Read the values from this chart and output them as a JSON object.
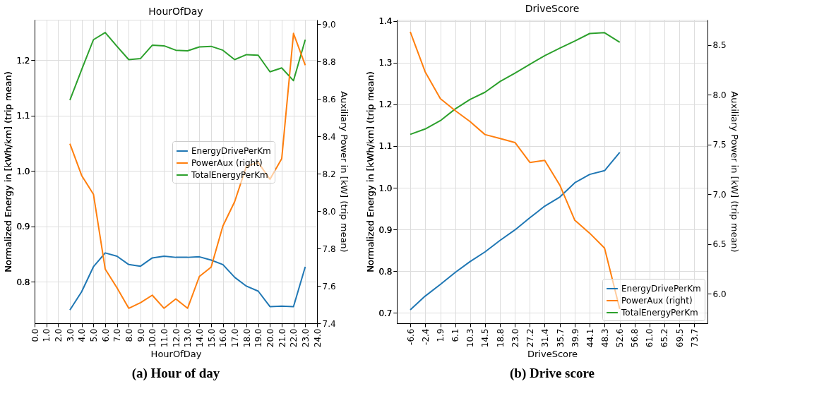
{
  "chart_data": [
    {
      "type": "line",
      "title": "HourOfDay",
      "xlabel": "HourOfDay",
      "ylabel": "Normalized Energy in [kWh/km] (trip mean)",
      "y2label": "Auxiliary Power in [kW] (trip mean)",
      "annotations": [
        "(a) Hour of day"
      ],
      "grid": true,
      "legend": "right",
      "xlim": [
        0,
        24
      ],
      "xticks": [
        {
          "value": 0,
          "label": "0.0"
        },
        {
          "value": 1,
          "label": "1.0"
        },
        {
          "value": 2,
          "label": "2.0"
        },
        {
          "value": 3,
          "label": "3.0"
        },
        {
          "value": 4,
          "label": "4.0"
        },
        {
          "value": 5,
          "label": "5.0"
        },
        {
          "value": 6,
          "label": "6.0"
        },
        {
          "value": 7,
          "label": "7.0"
        },
        {
          "value": 8,
          "label": "8.0"
        },
        {
          "value": 9,
          "label": "9.0"
        },
        {
          "value": 10,
          "label": "10.0"
        },
        {
          "value": 11,
          "label": "11.0"
        },
        {
          "value": 12,
          "label": "12.0"
        },
        {
          "value": 13,
          "label": "13.0"
        },
        {
          "value": 14,
          "label": "14.0"
        },
        {
          "value": 15,
          "label": "15.0"
        },
        {
          "value": 16,
          "label": "16.0"
        },
        {
          "value": 17,
          "label": "17.0"
        },
        {
          "value": 18,
          "label": "18.0"
        },
        {
          "value": 19,
          "label": "19.0"
        },
        {
          "value": 20,
          "label": "20.0"
        },
        {
          "value": 21,
          "label": "21.0"
        },
        {
          "value": 22,
          "label": "22.0"
        },
        {
          "value": 23,
          "label": "23.0"
        },
        {
          "value": 24,
          "label": "24.0"
        }
      ],
      "ylim": [
        0.725,
        1.273
      ],
      "yticks": [
        0.8,
        0.9,
        {
          "value": 1.0,
          "label": "1.0"
        },
        1.1,
        1.2
      ],
      "y2lim": [
        7.4,
        9.023
      ],
      "y2ticks": [
        7.4,
        7.6,
        7.8,
        {
          "value": 8.0,
          "label": "8.0"
        },
        8.2,
        8.4,
        8.6,
        8.8,
        {
          "value": 9.0,
          "label": "9.0"
        }
      ],
      "x": [
        3,
        4,
        5,
        6,
        7,
        8,
        9,
        10,
        11,
        12,
        13,
        14,
        15,
        16,
        17,
        18,
        19,
        20,
        21,
        22,
        23
      ],
      "series": [
        {
          "name": "EnergyDrivePerKm",
          "color": "#1f77b4",
          "values": [
            0.749,
            0.782,
            0.827,
            0.852,
            0.846,
            0.831,
            0.828,
            0.843,
            0.846,
            0.844,
            0.844,
            0.845,
            0.839,
            0.831,
            0.808,
            0.792,
            0.783,
            0.755,
            0.756,
            0.755,
            0.827
          ]
        },
        {
          "name": "PowerAux (right)",
          "color": "#ff7f0e",
          "axis": "y2",
          "values": [
            8.36,
            8.19,
            8.09,
            7.69,
            7.59,
            7.48,
            7.51,
            7.55,
            7.48,
            7.53,
            7.48,
            7.65,
            7.7,
            7.92,
            8.05,
            8.24,
            8.26,
            8.17,
            8.28,
            8.95,
            8.78
          ]
        },
        {
          "name": "TotalEnergyPerKm",
          "color": "#2ca02c",
          "values": [
            1.128,
            1.183,
            1.237,
            1.25,
            1.225,
            1.201,
            1.203,
            1.227,
            1.226,
            1.218,
            1.217,
            1.224,
            1.225,
            1.218,
            1.201,
            1.21,
            1.209,
            1.179,
            1.186,
            1.163,
            1.237
          ]
        }
      ]
    },
    {
      "type": "line",
      "title": "DriveScore",
      "xlabel": "DriveScore",
      "ylabel": "Normalized Energy in [kWh/km] (trip mean)",
      "y2label": "Auxiliary Power in [kW] (trip mean)",
      "annotations": [
        "(b) Drive score"
      ],
      "grid": true,
      "legend": "bottom right",
      "xlim": [
        -10.4,
        77.4
      ],
      "xticks": [
        -6.6,
        -2.4,
        1.9,
        6.1,
        10.3,
        14.5,
        18.8,
        {
          "value": 23.0,
          "label": "23.0"
        },
        27.2,
        31.4,
        35.7,
        39.9,
        44.1,
        48.3,
        52.6,
        56.8,
        {
          "value": 61.0,
          "label": "61.0"
        },
        65.2,
        69.5,
        73.7
      ],
      "ylim": [
        0.675,
        1.403
      ],
      "yticks": [
        0.7,
        0.8,
        0.9,
        {
          "value": 1.0,
          "label": "1.0"
        },
        1.1,
        1.2,
        1.3,
        1.4
      ],
      "y2lim": [
        5.706,
        8.752
      ],
      "y2ticks": [
        {
          "value": 6.0,
          "label": "6.0"
        },
        6.5,
        {
          "value": 7.0,
          "label": "7.0"
        },
        7.5,
        {
          "value": 8.0,
          "label": "8.0"
        },
        8.5
      ],
      "x": [
        -6.6,
        -2.4,
        1.9,
        6.1,
        10.3,
        14.5,
        18.8,
        23.0,
        27.2,
        31.4,
        35.7,
        39.9,
        44.1,
        48.3,
        52.6
      ],
      "series": [
        {
          "name": "EnergyDrivePerKm",
          "color": "#1f77b4",
          "values": [
            0.707,
            0.74,
            0.768,
            0.797,
            0.823,
            0.846,
            0.874,
            0.899,
            0.928,
            0.956,
            0.978,
            1.012,
            1.032,
            1.041,
            1.085
          ]
        },
        {
          "name": "PowerAux (right)",
          "color": "#ff7f0e",
          "axis": "y2",
          "values": [
            8.63,
            8.23,
            7.96,
            7.84,
            7.73,
            7.6,
            7.56,
            7.52,
            7.32,
            7.34,
            7.09,
            6.74,
            6.61,
            6.46,
            5.85
          ]
        },
        {
          "name": "TotalEnergyPerKm",
          "color": "#2ca02c",
          "values": [
            1.128,
            1.141,
            1.161,
            1.189,
            1.212,
            1.229,
            1.255,
            1.275,
            1.296,
            1.317,
            1.335,
            1.352,
            1.37,
            1.372,
            1.349
          ]
        }
      ]
    }
  ]
}
